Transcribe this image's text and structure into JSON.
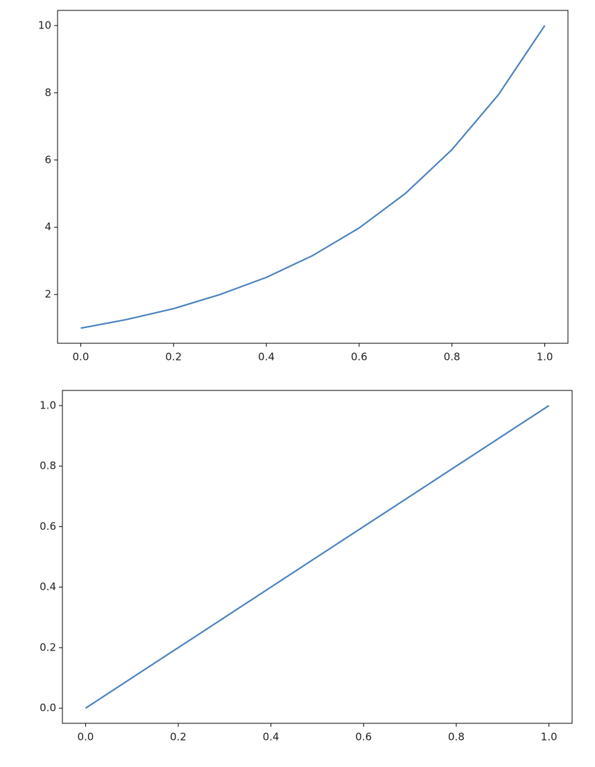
{
  "chart_data": [
    {
      "type": "line",
      "x": [
        0,
        0.1,
        0.2,
        0.3,
        0.4,
        0.5,
        0.6,
        0.7,
        0.8,
        0.9,
        1
      ],
      "values": [
        1,
        1.26,
        1.58,
        2.0,
        2.51,
        3.16,
        3.98,
        5.01,
        6.31,
        7.94,
        10
      ],
      "color": "#4a81bf",
      "xlim": [
        -0.05,
        1.05
      ],
      "ylim": [
        0.55,
        10.45
      ],
      "xticks": [
        {
          "value": 0,
          "label": "0.0"
        },
        0.2,
        0.4,
        0.6,
        0.8,
        {
          "value": 1,
          "label": "1.0"
        }
      ],
      "yticks": [
        2,
        4,
        6,
        8,
        10
      ],
      "grid": false
    },
    {
      "type": "line",
      "x": [
        0,
        1
      ],
      "values": [
        0,
        1
      ],
      "color": "#4a81bf",
      "xlim": [
        -0.05,
        1.05
      ],
      "ylim": [
        -0.05,
        1.05
      ],
      "xticks": [
        {
          "value": 0,
          "label": "0.0"
        },
        0.2,
        0.4,
        0.6,
        0.8,
        {
          "value": 1,
          "label": "1.0"
        }
      ],
      "yticks": [
        {
          "value": 0,
          "label": "0.0"
        },
        0.2,
        0.4,
        0.6,
        0.8,
        {
          "value": 1,
          "label": "1.0"
        }
      ],
      "grid": false
    }
  ]
}
